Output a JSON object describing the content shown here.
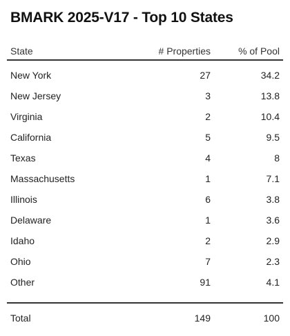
{
  "title": "BMARK 2025-V17 - Top 10 States",
  "columns": {
    "state": "State",
    "properties": "# Properties",
    "pct_of_pool": "% of Pool"
  },
  "rows": [
    {
      "state": "New York",
      "properties": "27",
      "pct": "34.2"
    },
    {
      "state": "New Jersey",
      "properties": "3",
      "pct": "13.8"
    },
    {
      "state": "Virginia",
      "properties": "2",
      "pct": "10.4"
    },
    {
      "state": "California",
      "properties": "5",
      "pct": "9.5"
    },
    {
      "state": "Texas",
      "properties": "4",
      "pct": "8"
    },
    {
      "state": "Massachusetts",
      "properties": "1",
      "pct": "7.1"
    },
    {
      "state": "Illinois",
      "properties": "6",
      "pct": "3.8"
    },
    {
      "state": "Delaware",
      "properties": "1",
      "pct": "3.6"
    },
    {
      "state": "Idaho",
      "properties": "2",
      "pct": "2.9"
    },
    {
      "state": "Ohio",
      "properties": "7",
      "pct": "2.3"
    },
    {
      "state": "Other",
      "properties": "91",
      "pct": "4.1"
    }
  ],
  "total": {
    "label": "Total",
    "properties": "149",
    "pct": "100"
  }
}
